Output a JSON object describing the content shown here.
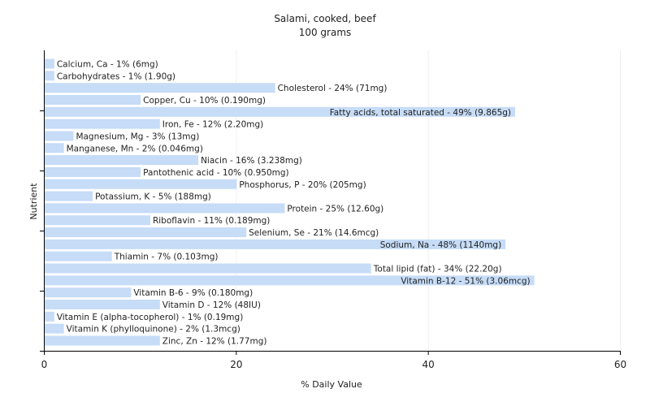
{
  "chart_data": {
    "type": "bar",
    "orientation": "horizontal",
    "title": "Salami, cooked, beef",
    "subtitle": "100 grams",
    "xlabel": "% Daily Value",
    "ylabel": "Nutrient",
    "xlim": [
      0,
      60
    ],
    "xticks": [
      0,
      20,
      40,
      60
    ],
    "grid": true,
    "bar_color": "#c6dcf7",
    "categories": [
      "Calcium, Ca",
      "Carbohydrates",
      "Cholesterol",
      "Copper, Cu",
      "Fatty acids, total saturated",
      "Iron, Fe",
      "Magnesium, Mg",
      "Manganese, Mn",
      "Niacin",
      "Pantothenic acid",
      "Phosphorus, P",
      "Potassium, K",
      "Protein",
      "Riboflavin",
      "Selenium, Se",
      "Sodium, Na",
      "Thiamin",
      "Total lipid (fat)",
      "Vitamin B-12",
      "Vitamin B-6",
      "Vitamin D",
      "Vitamin E (alpha-tocopherol)",
      "Vitamin K (phylloquinone)",
      "Zinc, Zn"
    ],
    "values": [
      1,
      1,
      24,
      10,
      49,
      12,
      3,
      2,
      16,
      10,
      20,
      5,
      25,
      11,
      21,
      48,
      7,
      34,
      51,
      9,
      12,
      1,
      2,
      12
    ],
    "labels": [
      "Calcium, Ca - 1% (6mg)",
      "Carbohydrates - 1% (1.90g)",
      "Cholesterol - 24% (71mg)",
      "Copper, Cu - 10% (0.190mg)",
      "Fatty acids, total saturated - 49% (9.865g)",
      "Iron, Fe - 12% (2.20mg)",
      "Magnesium, Mg - 3% (13mg)",
      "Manganese, Mn - 2% (0.046mg)",
      "Niacin - 16% (3.238mg)",
      "Pantothenic acid - 10% (0.950mg)",
      "Phosphorus, P - 20% (205mg)",
      "Potassium, K - 5% (188mg)",
      "Protein - 25% (12.60g)",
      "Riboflavin - 11% (0.189mg)",
      "Selenium, Se - 21% (14.6mcg)",
      "Sodium, Na - 48% (1140mg)",
      "Thiamin - 7% (0.103mg)",
      "Total lipid (fat) - 34% (22.20g)",
      "Vitamin B-12 - 51% (3.06mcg)",
      "Vitamin B-6 - 9% (0.180mg)",
      "Vitamin D - 12% (48IU)",
      "Vitamin E (alpha-tocopherol) - 1% (0.19mg)",
      "Vitamin K (phylloquinone) - 2% (1.3mcg)",
      "Zinc, Zn - 12% (1.77mg)"
    ]
  }
}
